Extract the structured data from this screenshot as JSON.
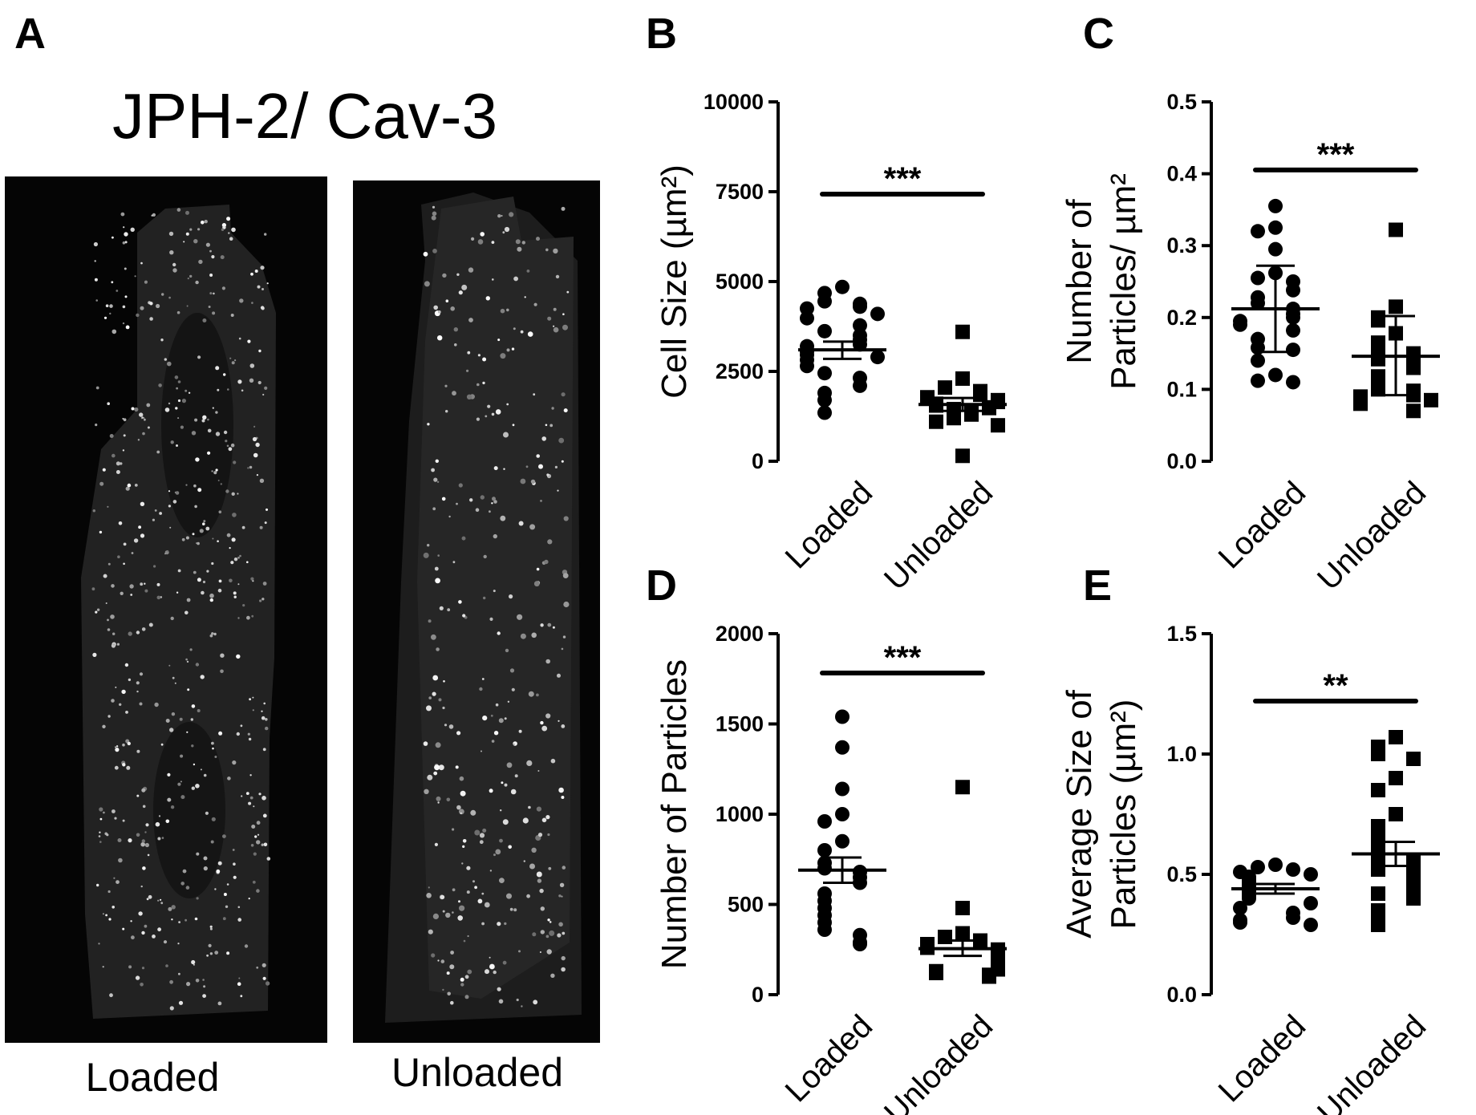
{
  "panel_a": {
    "letter": "A",
    "title": "JPH-2/ Cav-3",
    "captions": [
      "Loaded",
      "Unloaded"
    ]
  },
  "chart_data": [
    {
      "panel": "B",
      "type": "scatter",
      "ylabel_lines": [
        "Cell Size (µm²)"
      ],
      "ylim": [
        0,
        10000
      ],
      "yticks": [
        "0",
        "2500",
        "5000",
        "7500",
        "10000"
      ],
      "categories": [
        "Loaded",
        "Unloaded"
      ],
      "significance": "***",
      "series": [
        {
          "marker": "circle",
          "mean": 3100,
          "sem_low": 2850,
          "sem_high": 3330,
          "values": [
            4850,
            4680,
            4450,
            4380,
            4300,
            4250,
            4100,
            3980,
            3780,
            3620,
            3500,
            3380,
            3250,
            3200,
            3050,
            2960,
            2900,
            2820,
            2650,
            2450,
            2320,
            2100,
            1900,
            1700,
            1350
          ]
        },
        {
          "marker": "square",
          "mean": 1580,
          "sem_low": 1400,
          "sem_high": 1760,
          "values": [
            3600,
            2300,
            2050,
            1950,
            1850,
            1780,
            1700,
            1650,
            1600,
            1550,
            1500,
            1480,
            1450,
            1400,
            1350,
            1300,
            1200,
            1100,
            1000,
            150
          ]
        }
      ]
    },
    {
      "panel": "C",
      "type": "scatter",
      "ylabel_lines": [
        "Number of",
        "Particles/ µm²"
      ],
      "ylim": [
        0,
        0.5
      ],
      "yticks": [
        "0.0",
        "0.1",
        "0.2",
        "0.3",
        "0.4",
        "0.5"
      ],
      "categories": [
        "Loaded",
        "Unloaded"
      ],
      "significance": "***",
      "series": [
        {
          "marker": "circle",
          "mean": 0.212,
          "sem_low": 0.152,
          "sem_high": 0.272,
          "values": [
            0.355,
            0.325,
            0.32,
            0.295,
            0.262,
            0.255,
            0.25,
            0.238,
            0.228,
            0.22,
            0.212,
            0.205,
            0.2,
            0.195,
            0.19,
            0.182,
            0.17,
            0.158,
            0.155,
            0.14,
            0.12,
            0.112,
            0.11
          ]
        },
        {
          "marker": "square",
          "mean": 0.146,
          "sem_low": 0.092,
          "sem_high": 0.202,
          "values": [
            0.322,
            0.215,
            0.2,
            0.196,
            0.178,
            0.165,
            0.16,
            0.15,
            0.142,
            0.14,
            0.13,
            0.118,
            0.112,
            0.1,
            0.098,
            0.092,
            0.09,
            0.085,
            0.08,
            0.07
          ]
        }
      ]
    },
    {
      "panel": "D",
      "type": "scatter",
      "ylabel_lines": [
        "Number of Particles"
      ],
      "ylim": [
        0,
        2000
      ],
      "yticks": [
        "0",
        "500",
        "1000",
        "1500",
        "2000"
      ],
      "categories": [
        "Loaded",
        "Unloaded"
      ],
      "significance": "***",
      "series": [
        {
          "marker": "circle",
          "mean": 690,
          "sem_low": 620,
          "sem_high": 760,
          "values": [
            1540,
            1370,
            1140,
            1000,
            960,
            850,
            800,
            730,
            700,
            680,
            650,
            620,
            560,
            520,
            480,
            440,
            400,
            360,
            330,
            290,
            280
          ]
        },
        {
          "marker": "square",
          "mean": 255,
          "sem_low": 215,
          "sem_high": 300,
          "values": [
            1150,
            480,
            340,
            320,
            300,
            280,
            260,
            250,
            230,
            220,
            200,
            180,
            170,
            150,
            140,
            130,
            120,
            110,
            100
          ]
        }
      ]
    },
    {
      "panel": "E",
      "type": "scatter",
      "ylabel_lines": [
        "Average Size of",
        "Particles  (µm²)"
      ],
      "ylim": [
        0,
        1.5
      ],
      "yticks": [
        "0.0",
        "0.5",
        "1.0",
        "1.5"
      ],
      "categories": [
        "Loaded",
        "Unloaded"
      ],
      "significance": "**",
      "series": [
        {
          "marker": "circle",
          "mean": 0.44,
          "sem_low": 0.42,
          "sem_high": 0.46,
          "values": [
            0.54,
            0.53,
            0.52,
            0.51,
            0.5,
            0.49,
            0.48,
            0.47,
            0.46,
            0.45,
            0.44,
            0.43,
            0.42,
            0.41,
            0.4,
            0.38,
            0.36,
            0.34,
            0.32,
            0.31,
            0.3,
            0.29
          ]
        },
        {
          "marker": "square",
          "mean": 0.585,
          "sem_low": 0.535,
          "sem_high": 0.635,
          "values": [
            1.07,
            1.03,
            1.0,
            0.98,
            0.9,
            0.85,
            0.75,
            0.7,
            0.65,
            0.6,
            0.58,
            0.55,
            0.52,
            0.5,
            0.48,
            0.45,
            0.42,
            0.4,
            0.35,
            0.3,
            0.29
          ]
        }
      ]
    }
  ]
}
